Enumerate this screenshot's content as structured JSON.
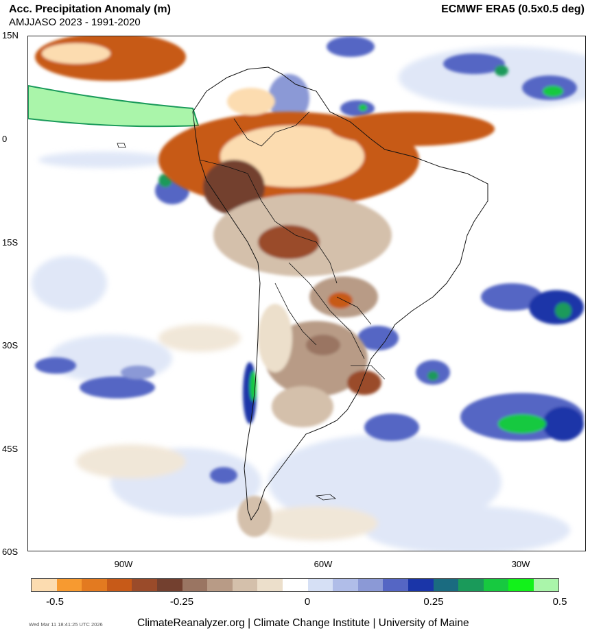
{
  "header": {
    "title": "Acc. Precipitation Anomaly (m)",
    "subtitle": "AMJJASO 2023 - 1991-2020",
    "source": "ECMWF ERA5 (0.5x0.5 deg)"
  },
  "axes": {
    "lat_labels": [
      "15N",
      "0",
      "15S",
      "30S",
      "45S",
      "60S"
    ],
    "lon_labels": [
      "90W",
      "60W",
      "30W"
    ]
  },
  "colorbar": {
    "colors": [
      "#fcdcb0",
      "#f79a30",
      "#e37a20",
      "#c75a18",
      "#9a4b2a",
      "#73402f",
      "#9a7562",
      "#b89b86",
      "#d4c0ab",
      "#ecdfcb",
      "#ffffff",
      "#d6e0f5",
      "#b0bde8",
      "#8b99d6",
      "#5566c4",
      "#1a35a8",
      "#1a6b80",
      "#1a9a5a",
      "#17c940",
      "#12f21a",
      "#aaf5aa"
    ],
    "tick_labels": [
      "-0.5",
      "-0.25",
      "0",
      "0.25",
      "0.5"
    ]
  },
  "footer": {
    "timestamp": "Wed Mar 11 18:41:25 UTC 2026",
    "credit": "ClimateReanalyzer.org | Climate Change Institute | University of Maine"
  }
}
